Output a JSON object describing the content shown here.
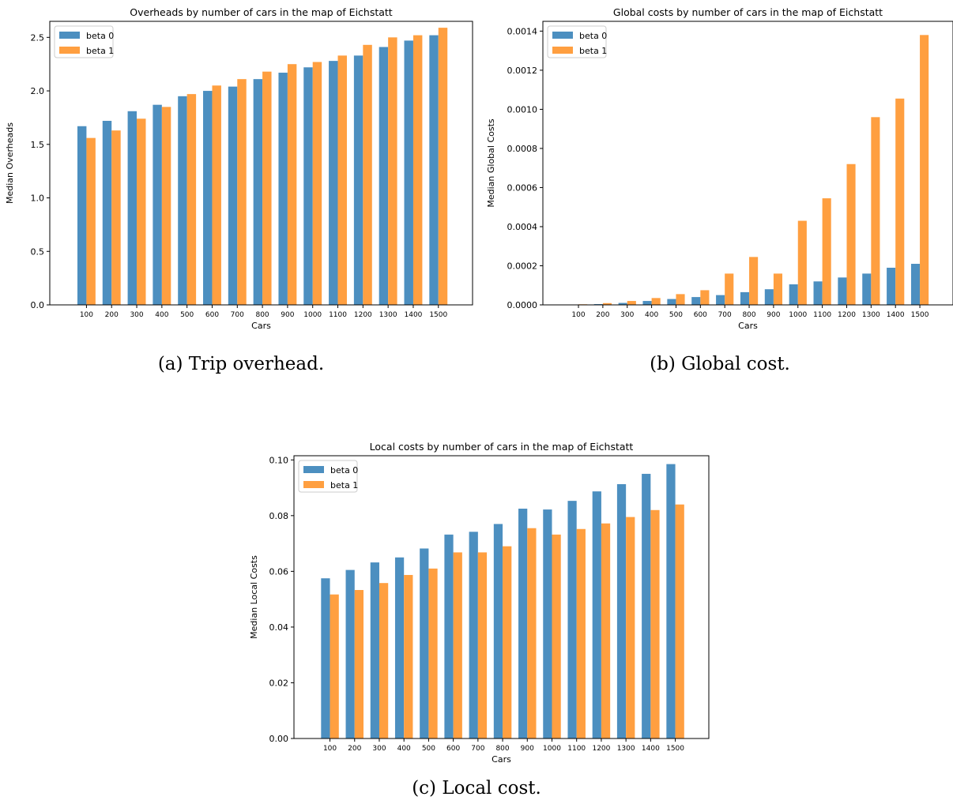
{
  "charts": [
    {
      "title": "Overheads by number of cars in the map of Eichstatt",
      "caption": "(a) Trip overhead.",
      "chart_data": {
        "type": "bar",
        "title": "Overheads by number of cars in the map of Eichstatt",
        "xlabel": "Cars",
        "ylabel": "Median Overheads",
        "categories": [
          "100",
          "200",
          "300",
          "400",
          "500",
          "600",
          "700",
          "800",
          "900",
          "1000",
          "1100",
          "1200",
          "1300",
          "1400",
          "1500"
        ],
        "series": [
          {
            "name": "beta 0",
            "color": "#4c8fc0",
            "values": [
              1.67,
              1.72,
              1.81,
              1.87,
              1.95,
              2.0,
              2.04,
              2.11,
              2.17,
              2.22,
              2.28,
              2.33,
              2.41,
              2.47,
              2.52
            ]
          },
          {
            "name": "beta 1",
            "color": "#ff9f40",
            "values": [
              1.56,
              1.63,
              1.74,
              1.85,
              1.97,
              2.05,
              2.11,
              2.18,
              2.25,
              2.27,
              2.33,
              2.43,
              2.5,
              2.52,
              2.59
            ]
          }
        ],
        "ylim": [
          0,
          2.65
        ],
        "yticks": [
          "0.0",
          "0.5",
          "1.0",
          "1.5",
          "2.0",
          "2.5"
        ],
        "ytick_values": [
          0,
          0.5,
          1.0,
          1.5,
          2.0,
          2.5
        ],
        "legend": "top-left",
        "grid": false
      }
    },
    {
      "title": "Global costs by number of cars in the map of Eichstatt",
      "caption": "(b) Global cost.",
      "chart_data": {
        "type": "bar",
        "title": "Global costs by number of cars in the map of Eichstatt",
        "xlabel": "Cars",
        "ylabel": "Median Global Costs",
        "categories": [
          "100",
          "200",
          "300",
          "400",
          "500",
          "600",
          "700",
          "800",
          "900",
          "1000",
          "1100",
          "1200",
          "1300",
          "1400",
          "1500"
        ],
        "series": [
          {
            "name": "beta 0",
            "color": "#4c8fc0",
            "values": [
              2e-06,
              4e-06,
              1e-05,
              2e-05,
              3e-05,
              4e-05,
              5e-05,
              6.5e-05,
              8e-05,
              0.000105,
              0.00012,
              0.00014,
              0.00016,
              0.00019,
              0.00021
            ]
          },
          {
            "name": "beta 1",
            "color": "#ff9f40",
            "values": [
              3e-06,
              9e-06,
              2e-05,
              3.5e-05,
              5.5e-05,
              7.5e-05,
              0.00016,
              0.000245,
              0.00016,
              0.00043,
              0.000545,
              0.00072,
              0.00096,
              0.001055,
              0.00138
            ]
          }
        ],
        "ylim": [
          0,
          0.00145
        ],
        "yticks": [
          "0.0000",
          "0.0002",
          "0.0004",
          "0.0006",
          "0.0008",
          "0.0010",
          "0.0012",
          "0.0014"
        ],
        "ytick_values": [
          0,
          0.0002,
          0.0004,
          0.0006,
          0.0008,
          0.001,
          0.0012,
          0.0014
        ],
        "legend": "top-left",
        "grid": false
      }
    },
    {
      "title": "Local costs by number of cars in the map of Eichstatt",
      "caption": "(c) Local cost.",
      "chart_data": {
        "type": "bar",
        "title": "Local costs by number of cars in the map of Eichstatt",
        "xlabel": "Cars",
        "ylabel": "Median Local Costs",
        "categories": [
          "100",
          "200",
          "300",
          "400",
          "500",
          "600",
          "700",
          "800",
          "900",
          "1000",
          "1100",
          "1200",
          "1300",
          "1400",
          "1500"
        ],
        "series": [
          {
            "name": "beta 0",
            "color": "#4c8fc0",
            "values": [
              0.0575,
              0.0605,
              0.0632,
              0.065,
              0.0682,
              0.0732,
              0.0742,
              0.077,
              0.0825,
              0.0822,
              0.0853,
              0.0887,
              0.0913,
              0.095,
              0.0985
            ]
          },
          {
            "name": "beta 1",
            "color": "#ff9f40",
            "values": [
              0.0517,
              0.0533,
              0.0558,
              0.0587,
              0.061,
              0.0668,
              0.0668,
              0.069,
              0.0755,
              0.0732,
              0.0752,
              0.0772,
              0.0795,
              0.082,
              0.084
            ]
          }
        ],
        "ylim": [
          0,
          0.1015
        ],
        "yticks": [
          "0.00",
          "0.02",
          "0.04",
          "0.06",
          "0.08",
          "0.10"
        ],
        "ytick_values": [
          0,
          0.02,
          0.04,
          0.06,
          0.08,
          0.1
        ],
        "legend": "top-left",
        "grid": false
      }
    }
  ]
}
